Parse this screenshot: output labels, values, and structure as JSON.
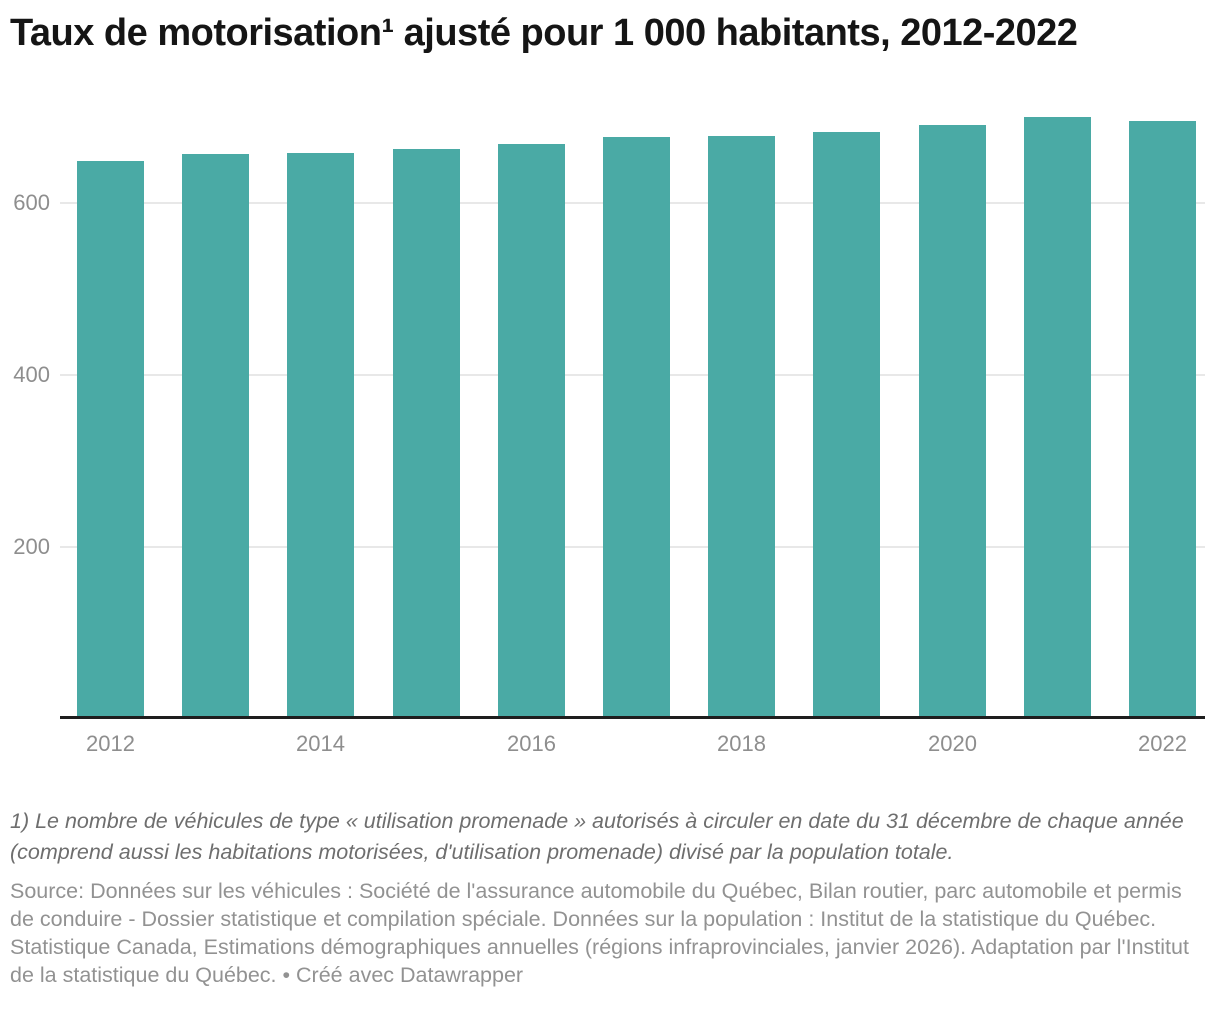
{
  "title": "Taux de motorisation¹ ajusté pour 1 000 habitants, 2012-2022",
  "footnote": "1) Le nombre de véhicules de type « utilisation promenade » autorisés à circuler en date du 31 décembre de chaque année (comprend aussi les habitations motorisées, d'utilisation promenade) divisé par la population totale.",
  "source": "Source: Données sur les véhicules : Société de l'assurance automobile du Québec, Bilan routier, parc automobile et permis de conduire - Dossier statistique et compilation spéciale. Données sur la population : Institut de la statistique du Québec. Statistique Canada, Estimations démographiques annuelles (régions infraprovinciales, janvier 2026). Adaptation par l'Institut de la statistique du Québec.",
  "credit_separator": " • ",
  "credit": "Créé avec Datawrapper",
  "colors": {
    "bar": "#4aaaa5",
    "grid": "#e8e8e8",
    "axis": "#1e1e1e",
    "tick_labels": "#8e8e8e",
    "title": "#151515",
    "footnote": "#6e6e6e",
    "source": "#929292"
  },
  "chart_data": {
    "type": "bar",
    "title": "Taux de motorisation ajusté pour 1 000 habitants, 2012-2022",
    "categories": [
      2012,
      2013,
      2014,
      2015,
      2016,
      2017,
      2018,
      2019,
      2020,
      2021,
      2022
    ],
    "values": [
      650,
      658,
      659,
      664,
      669,
      677,
      679,
      683,
      692,
      701,
      696
    ],
    "xlabel": "",
    "ylabel": "",
    "ylim": [
      0,
      723
    ],
    "yticks": [
      200,
      400,
      600
    ],
    "x_tick_labels": [
      "2012",
      "2014",
      "2016",
      "2018",
      "2020",
      "2022"
    ],
    "x_ticks_every": 2,
    "grid": "horizontal",
    "legend": "none",
    "bar_color": "#4aaaa5"
  }
}
